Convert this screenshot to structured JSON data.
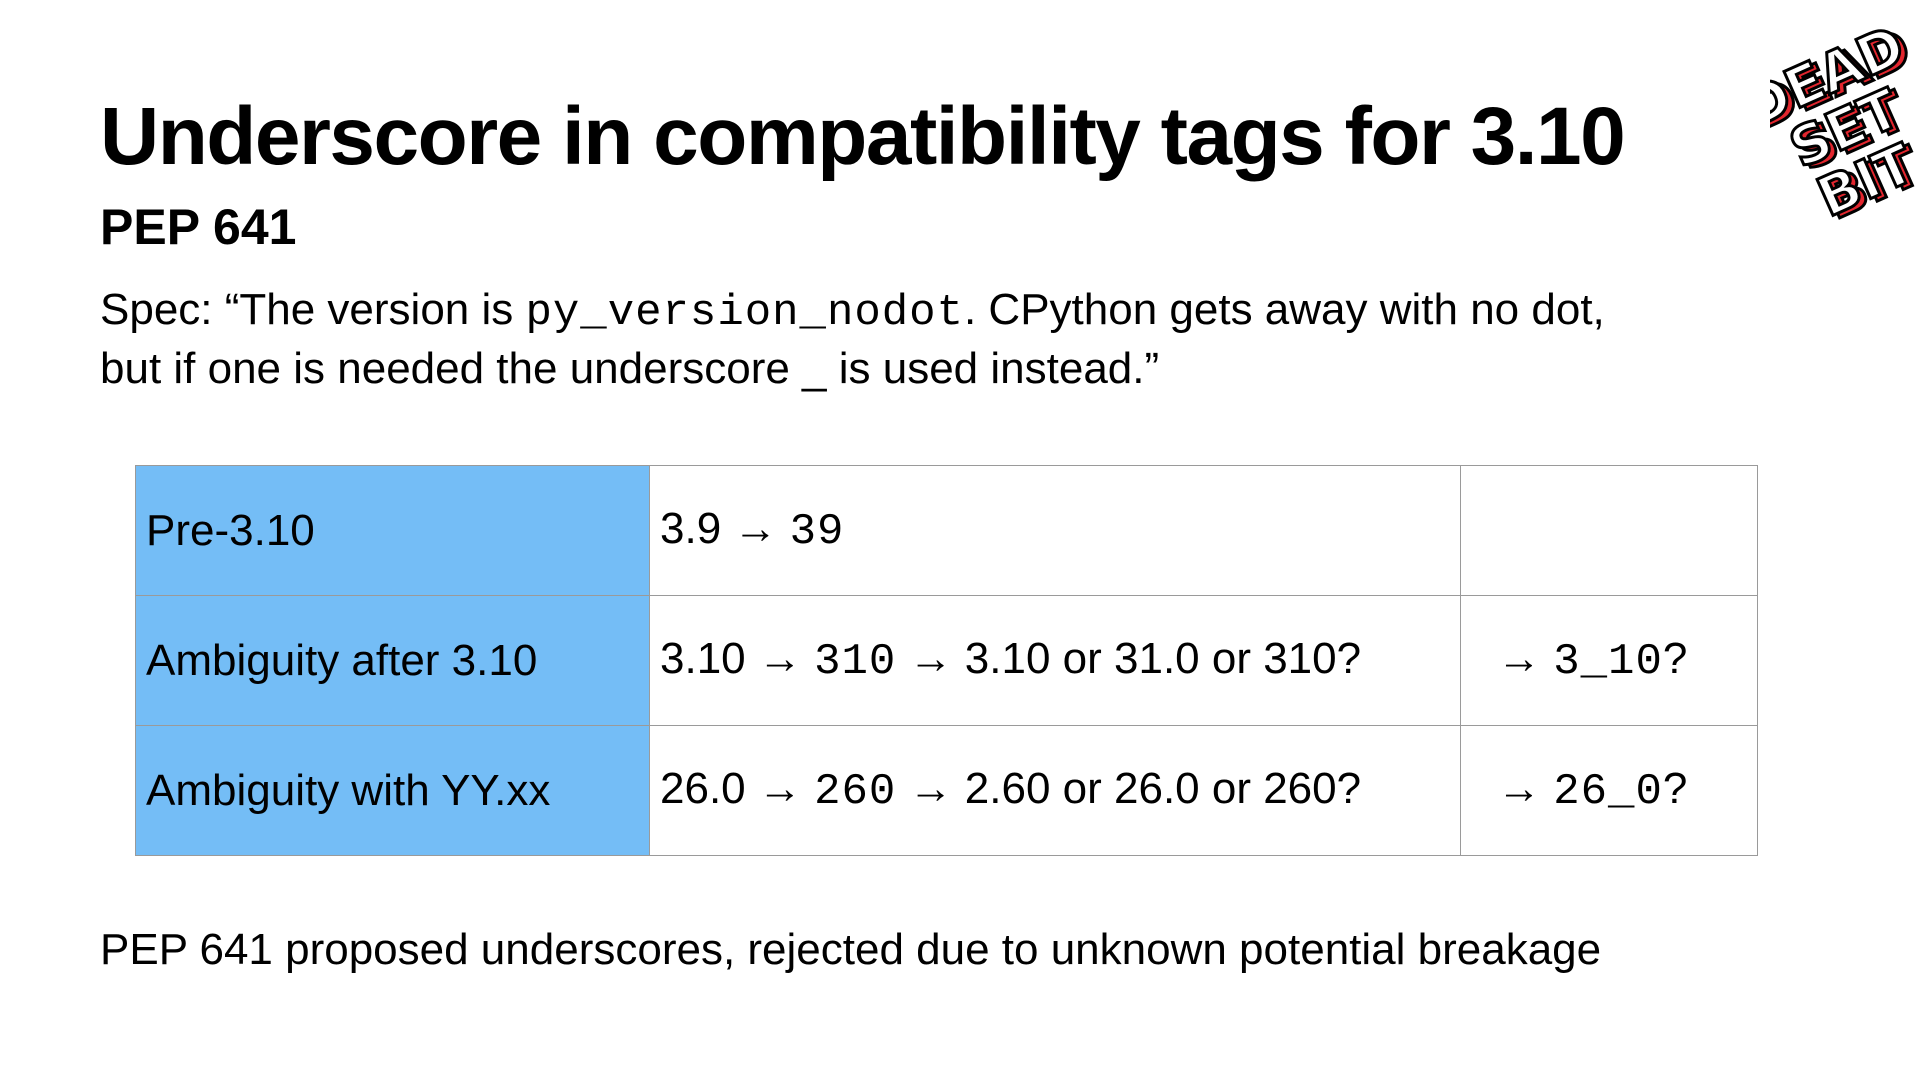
{
  "slide": {
    "title": "Underscore in compatibility tags for 3.10",
    "subtitle": "PEP 641",
    "spec": {
      "line1_prefix": "Spec: “The version is ",
      "line1_code": "py_version_nodot",
      "line1_suffix": ". CPython gets away with no dot,",
      "line2": "but if one is needed the underscore _ is used instead.”"
    },
    "table": {
      "rows": [
        {
          "label": "Pre-3.10",
          "from": "3.9",
          "arrow1": "→",
          "code": "39",
          "arrow2": "",
          "question": "",
          "proposal_arrow": "",
          "proposal_code": "",
          "proposal_q": ""
        },
        {
          "label": "Ambiguity after 3.10",
          "from": "3.10",
          "arrow1": "→",
          "code": "310",
          "arrow2": "→",
          "question": "3.10 or 31.0 or 310?",
          "proposal_arrow": "→",
          "proposal_code": "3_10",
          "proposal_q": "?"
        },
        {
          "label": "Ambiguity with YY.xx",
          "from": "26.0",
          "arrow1": "→",
          "code": "260",
          "arrow2": "→",
          "question": "2.60 or 26.0 or 260?",
          "proposal_arrow": "→",
          "proposal_code": "26_0",
          "proposal_q": "?"
        }
      ]
    },
    "footer": "PEP 641 proposed underscores, rejected due to unknown potential breakage",
    "logo": {
      "lines": [
        "DEAD",
        "SET",
        "BIT"
      ],
      "colors": {
        "face": "#ffffff",
        "outline": "#000000",
        "shadow": "#e2262e"
      },
      "icon": "dead-set-bit-logo"
    }
  }
}
